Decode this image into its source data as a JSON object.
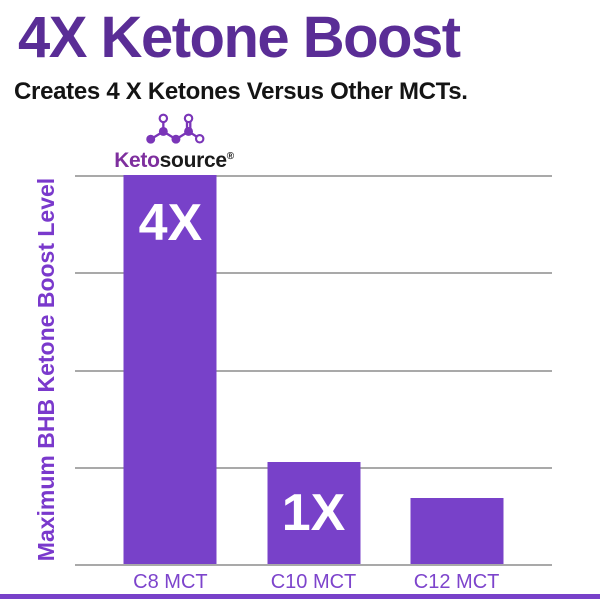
{
  "header": {
    "title": "4X Ketone Boost",
    "subtitle": "Creates 4 X Ketones Versus Other MCTs."
  },
  "logo": {
    "brand_first": "Keto",
    "brand_second": "source",
    "registered_mark": "®"
  },
  "chart_data": {
    "type": "bar",
    "categories": [
      "C8 MCT",
      "C10 MCT",
      "C12 MCT"
    ],
    "values": [
      4,
      1.05,
      0.68
    ],
    "bar_labels": [
      "4X",
      "1X",
      ""
    ],
    "title": "4X Ketone Boost",
    "xlabel": "",
    "ylabel": "Maximum BHB Ketone Boost Level",
    "ylim": [
      0,
      4
    ],
    "gridline_count": 5,
    "grid": true,
    "legend": false,
    "bar_center_fractions": [
      0.2,
      0.5,
      0.8
    ]
  },
  "colors": {
    "bar": "#7841c9",
    "title_text": "#5a2d96",
    "subtitle_text": "#141414",
    "axis_label": "#7a39cc",
    "tick_label": "#7d44cc",
    "gridline": "#a9a9a9",
    "bar_label": "#ffffff",
    "logo_keto": "#7e2f9e",
    "logo_source": "#1a1a1a",
    "accent_strip": "#7841c9"
  }
}
